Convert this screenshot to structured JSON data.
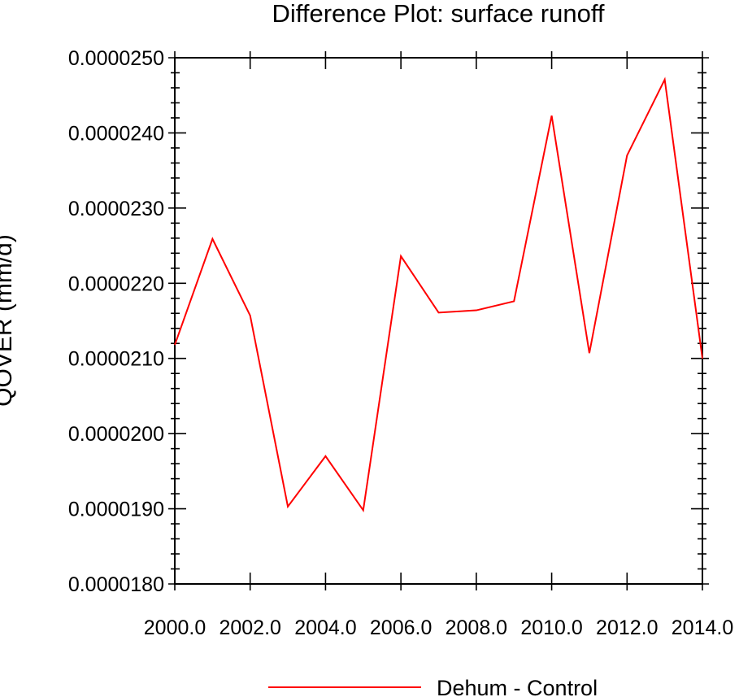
{
  "chart_data": {
    "type": "line",
    "title": "Difference Plot: surface runoff",
    "xlabel": "",
    "ylabel": "QOVER  (mm/d)",
    "xlim": [
      2000,
      2014
    ],
    "ylim": [
      1.8e-05,
      2.5e-05
    ],
    "x_ticks": [
      2000,
      2002,
      2004,
      2006,
      2008,
      2010,
      2012,
      2014
    ],
    "x_tick_labels": [
      "2000.0",
      "2002.0",
      "2004.0",
      "2006.0",
      "2008.0",
      "2010.0",
      "2012.0",
      "2014.0"
    ],
    "y_ticks": [
      1.8e-05,
      1.9e-05,
      2e-05,
      2.1e-05,
      2.2e-05,
      2.3e-05,
      2.4e-05,
      2.5e-05
    ],
    "y_tick_labels": [
      "0.0000180",
      "0.0000190",
      "0.0000200",
      "0.0000210",
      "0.0000220",
      "0.0000230",
      "0.0000240",
      "0.0000250"
    ],
    "grid": false,
    "legend_position": "bottom-center",
    "x": [
      2000,
      2001,
      2002,
      2003,
      2004,
      2005,
      2006,
      2007,
      2008,
      2009,
      2010,
      2011,
      2012,
      2013,
      2014
    ],
    "series": [
      {
        "name": "Dehum - Control",
        "color": "#ff0000",
        "values": [
          2.118e-05,
          2.259e-05,
          2.157e-05,
          1.903e-05,
          1.97e-05,
          1.898e-05,
          2.236e-05,
          2.161e-05,
          2.164e-05,
          2.176e-05,
          2.423e-05,
          2.107e-05,
          2.37e-05,
          2.471e-05,
          2.1e-05
        ]
      }
    ]
  }
}
